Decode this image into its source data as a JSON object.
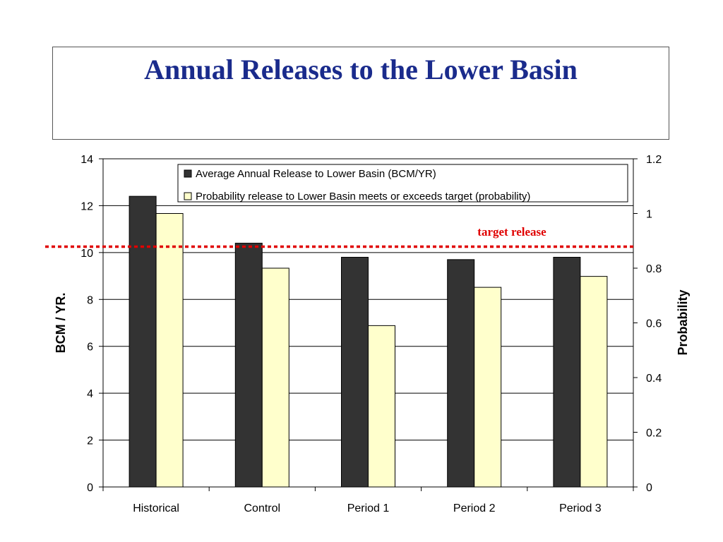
{
  "slide": {
    "title": "Annual Releases to the Lower Basin"
  },
  "colors": {
    "title": "#1a2b8c",
    "series_release": "#333333",
    "series_probability": "#ffffcc",
    "target_line": "#e00000"
  },
  "chart_data": {
    "type": "bar",
    "categories": [
      "Historical",
      "Control",
      "Period 1",
      "Period 2",
      "Period 3"
    ],
    "series": [
      {
        "name": "Average Annual Release to Lower Basin (BCM/YR)",
        "axis": "left",
        "values": [
          12.4,
          10.4,
          9.8,
          9.7,
          9.8
        ]
      },
      {
        "name": "Probability release to Lower Basin meets or exceeds target (probability)",
        "axis": "right",
        "values": [
          1.0,
          0.8,
          0.59,
          0.73,
          0.77
        ]
      }
    ],
    "ylabel": "BCM / YR.",
    "y2label": "Probability",
    "ylim": [
      0,
      14
    ],
    "y2lim": [
      0,
      1.2
    ],
    "yticks": [
      "0",
      "2",
      "4",
      "6",
      "8",
      "10",
      "12",
      "14"
    ],
    "y2ticks": [
      "0",
      "0.2",
      "0.4",
      "0.6",
      "0.8",
      "1",
      "1.2"
    ],
    "grid": true,
    "legend_position": "top",
    "target": {
      "label": "target release",
      "value": 10.25
    }
  }
}
